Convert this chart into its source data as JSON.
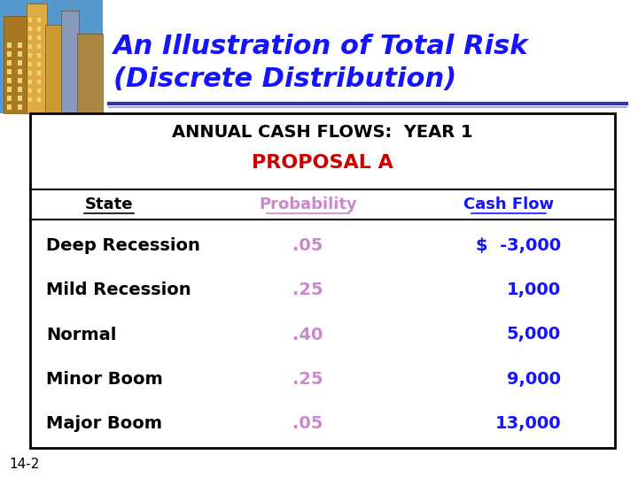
{
  "title_line1": "An Illustration of Total Risk",
  "title_line2": "(Discrete Distribution)",
  "title_color": "#1414FF",
  "subtitle_line1": "ANNUAL CASH FLOWS:  YEAR 1",
  "subtitle_line2": "PROPOSAL A",
  "subtitle_line1_color": "#000000",
  "subtitle_line2_color": "#CC0000",
  "header_state": "State",
  "header_prob": "Probability",
  "header_cashflow": "Cash Flow",
  "header_color_prob": "#CC88CC",
  "header_color_cashflow": "#1414FF",
  "header_color_state": "#000000",
  "states": [
    "Deep Recession",
    "Mild Recession",
    "Normal",
    "Minor Boom",
    "Major Boom"
  ],
  "probabilities": [
    ".05",
    ".25",
    ".40",
    ".25",
    ".05"
  ],
  "cashflows": [
    "$  -3,000",
    "1,000",
    "5,000",
    "9,000",
    "13,000"
  ],
  "state_color": "#000000",
  "prob_color": "#CC88CC",
  "cashflow_color": "#1414FF",
  "bg_color": "#FFFFFF",
  "slide_bg": "#FFFFFF",
  "footer": "14-2",
  "footer_color": "#000000",
  "underline_title_color": "#3333AA",
  "underline_title_color2": "#AAAADD",
  "box_border_color": "#000000"
}
